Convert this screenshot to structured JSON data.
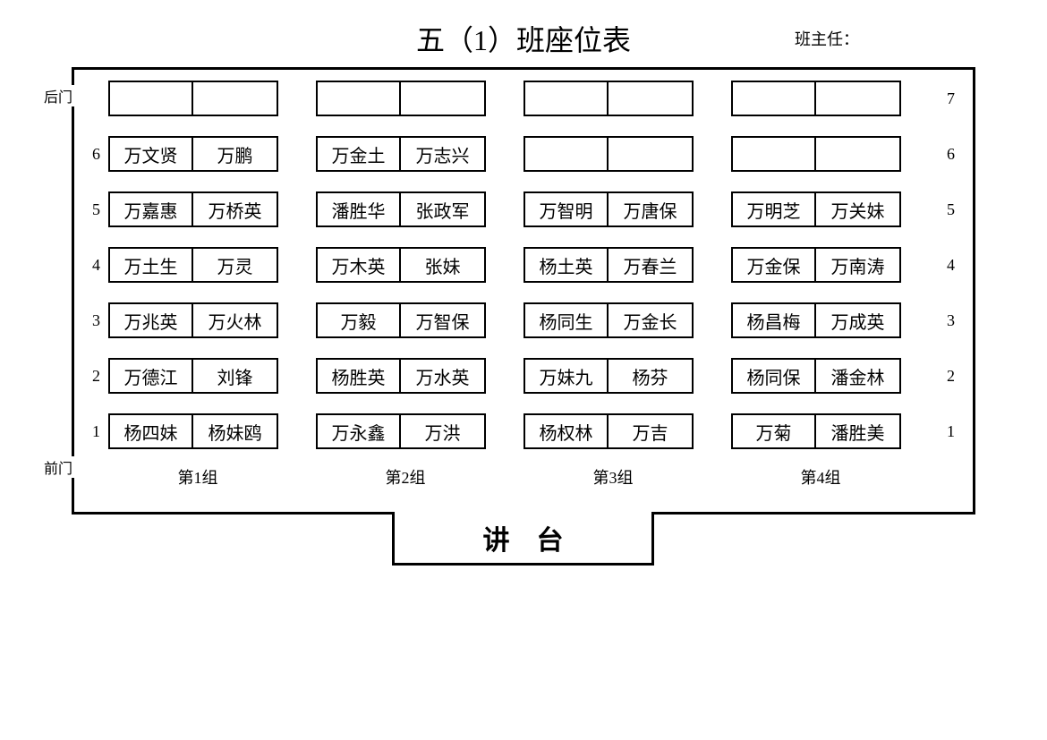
{
  "title": "五（1）班座位表",
  "teacher_label": "班主任：",
  "back_door": "后门",
  "front_door": "前门",
  "podium": "讲台",
  "row_labels_left": [
    "",
    "6",
    "5",
    "4",
    "3",
    "2",
    "1"
  ],
  "row_labels_right": [
    "7",
    "6",
    "5",
    "4",
    "3",
    "2",
    "1"
  ],
  "group_labels": [
    "第1组",
    "第2组",
    "第3组",
    "第4组"
  ],
  "layout": {
    "groups": 4,
    "seats_per_group": 2,
    "rows": 7,
    "seat_border_color": "#000000",
    "seat_bg_color": "#ffffff",
    "frame_border_color": "#000000",
    "font_family": "SimSun"
  },
  "rows": [
    {
      "g1": [
        "",
        ""
      ],
      "g2": [
        "",
        ""
      ],
      "g3": [
        "",
        ""
      ],
      "g4": [
        "",
        ""
      ]
    },
    {
      "g1": [
        "万文贤",
        "万鹏"
      ],
      "g2": [
        "万金土",
        "万志兴"
      ],
      "g3": [
        "",
        ""
      ],
      "g4": [
        "",
        ""
      ]
    },
    {
      "g1": [
        "万嘉惠",
        "万桥英"
      ],
      "g2": [
        "潘胜华",
        "张政军"
      ],
      "g3": [
        "万智明",
        "万唐保"
      ],
      "g4": [
        "万明芝",
        "万关妹"
      ]
    },
    {
      "g1": [
        "万土生",
        "万灵"
      ],
      "g2": [
        "万木英",
        "张妹"
      ],
      "g3": [
        "杨土英",
        "万春兰"
      ],
      "g4": [
        "万金保",
        "万南涛"
      ]
    },
    {
      "g1": [
        "万兆英",
        "万火林"
      ],
      "g2": [
        "万毅",
        "万智保"
      ],
      "g3": [
        "杨同生",
        "万金长"
      ],
      "g4": [
        "杨昌梅",
        "万成英"
      ]
    },
    {
      "g1": [
        "万德江",
        "刘锋"
      ],
      "g2": [
        "杨胜英",
        "万水英"
      ],
      "g3": [
        "万妹九",
        "杨芬"
      ],
      "g4": [
        "杨同保",
        "潘金林"
      ]
    },
    {
      "g1": [
        "杨四妹",
        "杨妹鸥"
      ],
      "g2": [
        "万永鑫",
        "万洪"
      ],
      "g3": [
        "杨权林",
        "万吉"
      ],
      "g4": [
        "万菊",
        "潘胜美"
      ]
    }
  ]
}
